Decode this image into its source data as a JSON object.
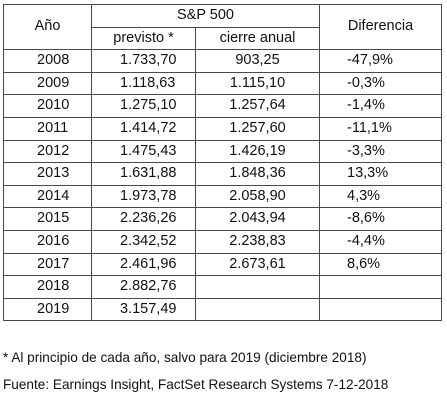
{
  "table": {
    "header_year": "Año",
    "header_group": "S&P 500",
    "header_prev": "previsto *",
    "header_close": "cierre anual",
    "header_diff": "Diferencia",
    "rows": [
      {
        "year": "2008",
        "prev": "1.733,70",
        "close": "903,25",
        "diff": "-47,9%"
      },
      {
        "year": "2009",
        "prev": "1.118,63",
        "close": "1.115,10",
        "diff": "-0,3%"
      },
      {
        "year": "2010",
        "prev": "1.275,10",
        "close": "1.257,64",
        "diff": "-1,4%"
      },
      {
        "year": "2011",
        "prev": "1.414,72",
        "close": "1.257,60",
        "diff": "-11,1%"
      },
      {
        "year": "2012",
        "prev": "1.475,43",
        "close": "1.426,19",
        "diff": "-3,3%"
      },
      {
        "year": "2013",
        "prev": "1.631,88",
        "close": "1.848,36",
        "diff": "13,3%"
      },
      {
        "year": "2014",
        "prev": "1.973,78",
        "close": "2.058,90",
        "diff": "4,3%"
      },
      {
        "year": "2015",
        "prev": "2.236,26",
        "close": "2.043,94",
        "diff": "-8,6%"
      },
      {
        "year": "2016",
        "prev": "2.342,52",
        "close": "2.238,83",
        "diff": "-4,4%"
      },
      {
        "year": "2017",
        "prev": "2.461,96",
        "close": "2.673,61",
        "diff": "8,6%"
      },
      {
        "year": "2018",
        "prev": "2.882,76",
        "close": "",
        "diff": ""
      },
      {
        "year": "2019",
        "prev": "3.157,49",
        "close": "",
        "diff": ""
      }
    ]
  },
  "footnote": "* Al principio de cada año, salvo para 2019 (diciembre 2018)",
  "source": "Fuente: Earnings Insight, FactSet Research Systems 7-12-2018"
}
